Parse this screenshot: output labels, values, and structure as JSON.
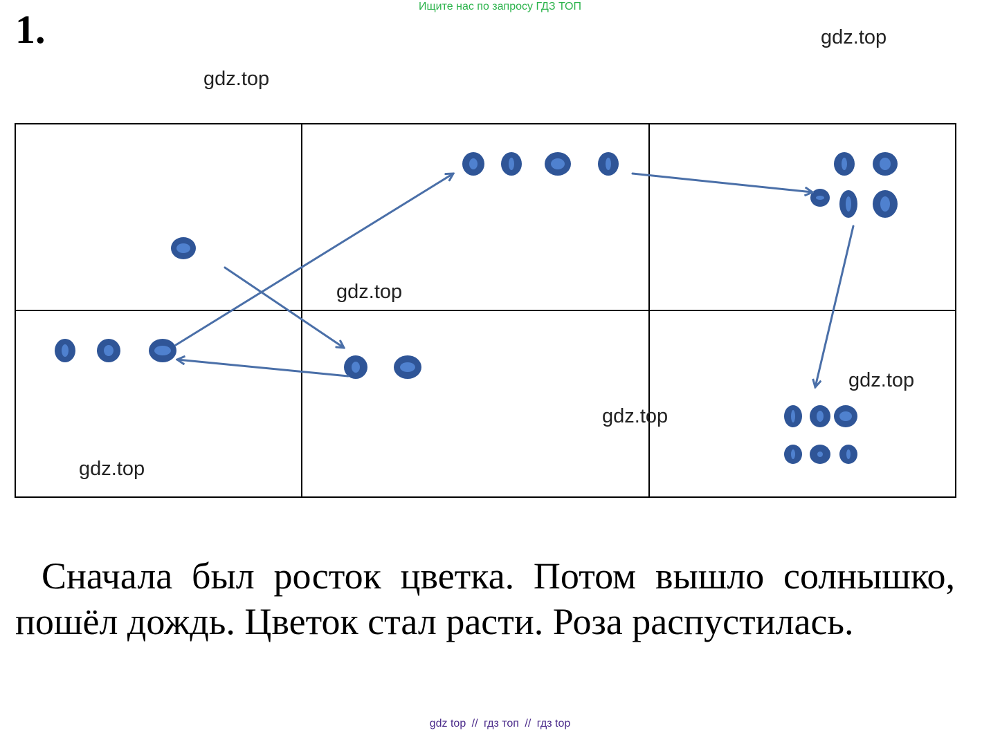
{
  "banner": "Ищите нас по запросу ГДЗ ТОП",
  "task_number": "1.",
  "watermarks": {
    "w1": "gdz.top",
    "w2": "gdz.top",
    "w3": "gdz.top",
    "w4": "gdz.top",
    "w5": "gdz.top",
    "w6": "gdz.top"
  },
  "story": "Сначала был росток цветка. Потом вышло солнышко, пошёл дождь. Цветок стал расти. Роза распустилась.",
  "footer": {
    "a": "gdz top",
    "sep1": "//",
    "b": "гдз топ",
    "sep2": "//",
    "c": "гдз top"
  },
  "colors": {
    "dot_fill": "#2f5597",
    "dot_inner": "#4f81cf",
    "dot_outline": "#1f3864",
    "arrow": "#4a6fa8",
    "banner": "#2bb34b"
  }
}
